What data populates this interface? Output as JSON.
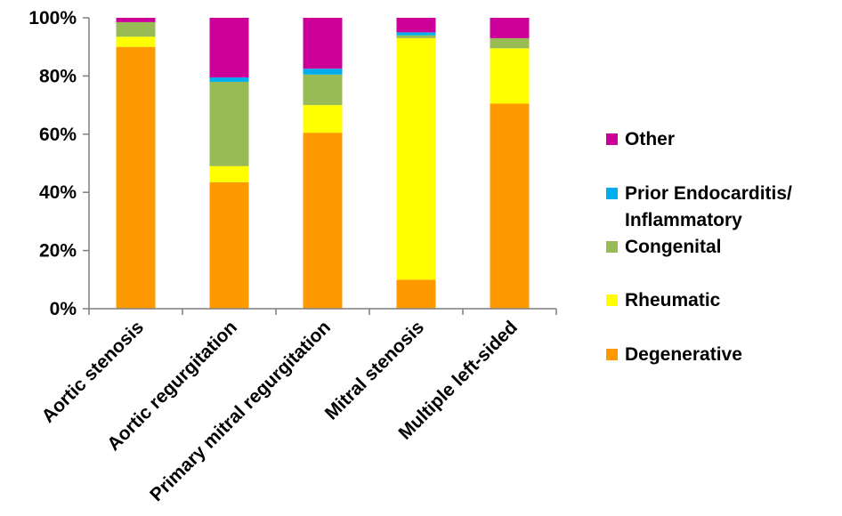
{
  "chart_data": {
    "type": "bar",
    "stacked": true,
    "percent": true,
    "categories": [
      "Aortic stenosis",
      "Aortic regurgitation",
      "Primary mitral regurgitation",
      "Mitral stenosis",
      "Multiple left-sided"
    ],
    "series": [
      {
        "name": "Degenerative",
        "color": "#FF9900",
        "values": [
          90,
          43.5,
          60.5,
          10,
          70.5
        ]
      },
      {
        "name": "Rheumatic",
        "color": "#FFFF00",
        "values": [
          3.5,
          5.5,
          9.5,
          83,
          19
        ]
      },
      {
        "name": "Congenital",
        "color": "#99BB55",
        "values": [
          5,
          29,
          10.5,
          1,
          3.5
        ]
      },
      {
        "name": "Prior Endocarditis/ Inflammatory",
        "label_lines": [
          "Prior Endocarditis/",
          "Inflammatory"
        ],
        "color": "#00AEEF",
        "values": [
          0,
          1.5,
          2,
          1,
          0
        ]
      },
      {
        "name": "Other",
        "color": "#CC0099",
        "values": [
          1.5,
          20.5,
          17.5,
          5,
          7
        ]
      }
    ],
    "yticks": [
      "0%",
      "20%",
      "40%",
      "60%",
      "80%",
      "100%"
    ],
    "ylim": [
      0,
      100
    ],
    "title": "",
    "xlabel": "",
    "ylabel": "",
    "grid": false,
    "legend_position": "right",
    "legend_order": [
      "Other",
      "Prior Endocarditis/ Inflammatory",
      "Congenital",
      "Rheumatic",
      "Degenerative"
    ]
  }
}
